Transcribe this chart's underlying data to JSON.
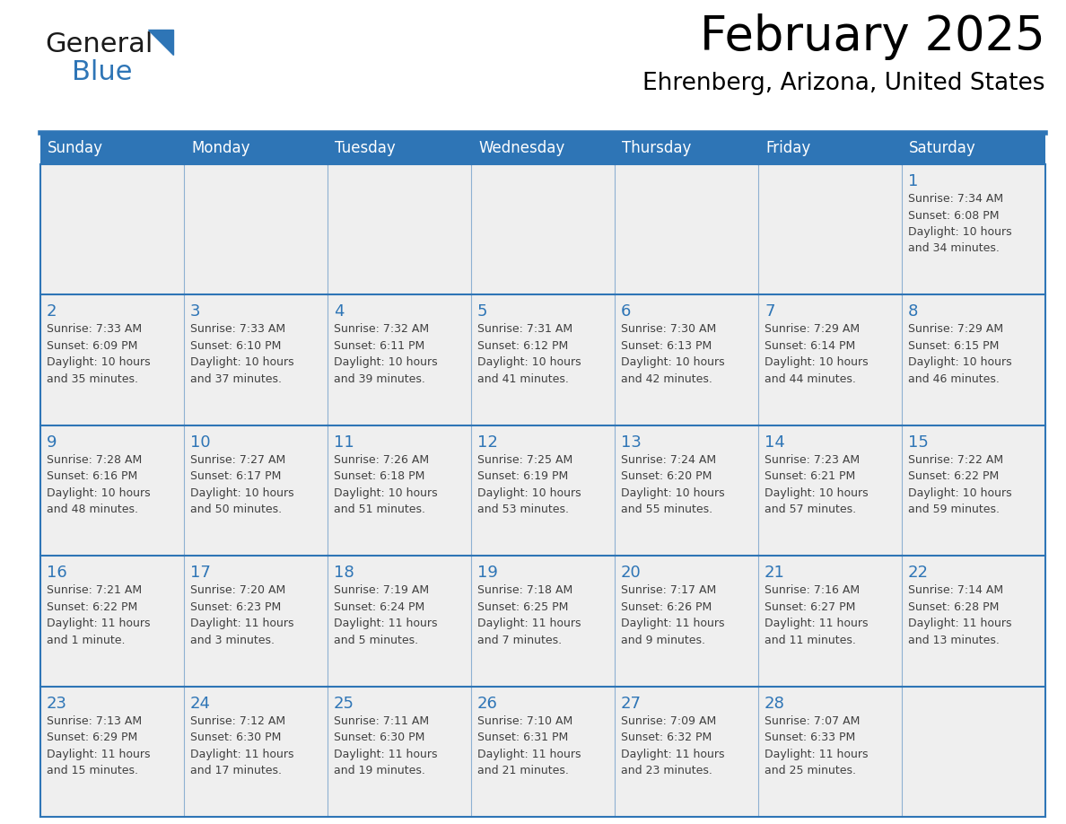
{
  "title": "February 2025",
  "subtitle": "Ehrenberg, Arizona, United States",
  "header_bg_color": "#2E75B6",
  "header_text_color": "#FFFFFF",
  "cell_bg_color": "#EFEFEF",
  "cell_bg_white": "#FFFFFF",
  "title_color": "#000000",
  "subtitle_color": "#000000",
  "day_number_color": "#2E75B6",
  "cell_text_color": "#404040",
  "grid_color": "#2E75B6",
  "days_of_week": [
    "Sunday",
    "Monday",
    "Tuesday",
    "Wednesday",
    "Thursday",
    "Friday",
    "Saturday"
  ],
  "weeks": [
    [
      {
        "day": 0,
        "text": ""
      },
      {
        "day": 0,
        "text": ""
      },
      {
        "day": 0,
        "text": ""
      },
      {
        "day": 0,
        "text": ""
      },
      {
        "day": 0,
        "text": ""
      },
      {
        "day": 0,
        "text": ""
      },
      {
        "day": 1,
        "text": "Sunrise: 7:34 AM\nSunset: 6:08 PM\nDaylight: 10 hours\nand 34 minutes."
      }
    ],
    [
      {
        "day": 2,
        "text": "Sunrise: 7:33 AM\nSunset: 6:09 PM\nDaylight: 10 hours\nand 35 minutes."
      },
      {
        "day": 3,
        "text": "Sunrise: 7:33 AM\nSunset: 6:10 PM\nDaylight: 10 hours\nand 37 minutes."
      },
      {
        "day": 4,
        "text": "Sunrise: 7:32 AM\nSunset: 6:11 PM\nDaylight: 10 hours\nand 39 minutes."
      },
      {
        "day": 5,
        "text": "Sunrise: 7:31 AM\nSunset: 6:12 PM\nDaylight: 10 hours\nand 41 minutes."
      },
      {
        "day": 6,
        "text": "Sunrise: 7:30 AM\nSunset: 6:13 PM\nDaylight: 10 hours\nand 42 minutes."
      },
      {
        "day": 7,
        "text": "Sunrise: 7:29 AM\nSunset: 6:14 PM\nDaylight: 10 hours\nand 44 minutes."
      },
      {
        "day": 8,
        "text": "Sunrise: 7:29 AM\nSunset: 6:15 PM\nDaylight: 10 hours\nand 46 minutes."
      }
    ],
    [
      {
        "day": 9,
        "text": "Sunrise: 7:28 AM\nSunset: 6:16 PM\nDaylight: 10 hours\nand 48 minutes."
      },
      {
        "day": 10,
        "text": "Sunrise: 7:27 AM\nSunset: 6:17 PM\nDaylight: 10 hours\nand 50 minutes."
      },
      {
        "day": 11,
        "text": "Sunrise: 7:26 AM\nSunset: 6:18 PM\nDaylight: 10 hours\nand 51 minutes."
      },
      {
        "day": 12,
        "text": "Sunrise: 7:25 AM\nSunset: 6:19 PM\nDaylight: 10 hours\nand 53 minutes."
      },
      {
        "day": 13,
        "text": "Sunrise: 7:24 AM\nSunset: 6:20 PM\nDaylight: 10 hours\nand 55 minutes."
      },
      {
        "day": 14,
        "text": "Sunrise: 7:23 AM\nSunset: 6:21 PM\nDaylight: 10 hours\nand 57 minutes."
      },
      {
        "day": 15,
        "text": "Sunrise: 7:22 AM\nSunset: 6:22 PM\nDaylight: 10 hours\nand 59 minutes."
      }
    ],
    [
      {
        "day": 16,
        "text": "Sunrise: 7:21 AM\nSunset: 6:22 PM\nDaylight: 11 hours\nand 1 minute."
      },
      {
        "day": 17,
        "text": "Sunrise: 7:20 AM\nSunset: 6:23 PM\nDaylight: 11 hours\nand 3 minutes."
      },
      {
        "day": 18,
        "text": "Sunrise: 7:19 AM\nSunset: 6:24 PM\nDaylight: 11 hours\nand 5 minutes."
      },
      {
        "day": 19,
        "text": "Sunrise: 7:18 AM\nSunset: 6:25 PM\nDaylight: 11 hours\nand 7 minutes."
      },
      {
        "day": 20,
        "text": "Sunrise: 7:17 AM\nSunset: 6:26 PM\nDaylight: 11 hours\nand 9 minutes."
      },
      {
        "day": 21,
        "text": "Sunrise: 7:16 AM\nSunset: 6:27 PM\nDaylight: 11 hours\nand 11 minutes."
      },
      {
        "day": 22,
        "text": "Sunrise: 7:14 AM\nSunset: 6:28 PM\nDaylight: 11 hours\nand 13 minutes."
      }
    ],
    [
      {
        "day": 23,
        "text": "Sunrise: 7:13 AM\nSunset: 6:29 PM\nDaylight: 11 hours\nand 15 minutes."
      },
      {
        "day": 24,
        "text": "Sunrise: 7:12 AM\nSunset: 6:30 PM\nDaylight: 11 hours\nand 17 minutes."
      },
      {
        "day": 25,
        "text": "Sunrise: 7:11 AM\nSunset: 6:30 PM\nDaylight: 11 hours\nand 19 minutes."
      },
      {
        "day": 26,
        "text": "Sunrise: 7:10 AM\nSunset: 6:31 PM\nDaylight: 11 hours\nand 21 minutes."
      },
      {
        "day": 27,
        "text": "Sunrise: 7:09 AM\nSunset: 6:32 PM\nDaylight: 11 hours\nand 23 minutes."
      },
      {
        "day": 28,
        "text": "Sunrise: 7:07 AM\nSunset: 6:33 PM\nDaylight: 11 hours\nand 25 minutes."
      },
      {
        "day": 0,
        "text": ""
      }
    ]
  ],
  "logo_text_general": "General",
  "logo_text_blue": "Blue",
  "header_fontsize": 12,
  "day_number_fontsize": 13,
  "cell_text_fontsize": 9,
  "title_fontsize": 38,
  "subtitle_fontsize": 19
}
